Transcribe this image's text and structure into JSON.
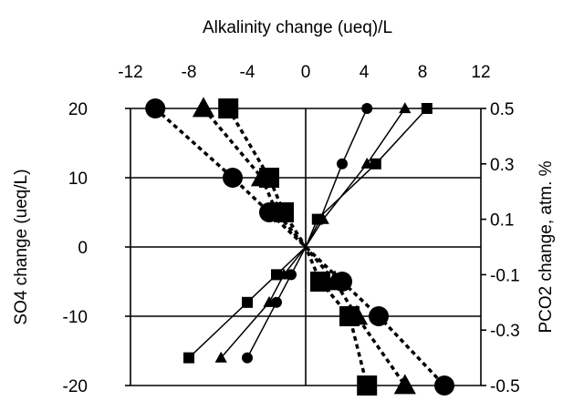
{
  "chart_data": {
    "type": "scatter",
    "title": "",
    "x_top_label": "Alkalinity change  (ueq)/L",
    "y_left_label": "SO4 change (ueq/L)",
    "y_right_label": "PCO2 change, atm. %",
    "x_ticks": [
      "-12",
      "-8",
      "-4",
      "0",
      "4",
      "8",
      "12"
    ],
    "x_tick_values": [
      -12,
      -8,
      -4,
      0,
      4,
      8,
      12
    ],
    "y_left_ticks": [
      "20",
      "10",
      "0",
      "-10",
      "-20"
    ],
    "y_left_tick_values": [
      20,
      10,
      0,
      -10,
      -20
    ],
    "y_right_ticks": [
      "0.5",
      "0.3",
      "0.1",
      "-0.1",
      "-0.3",
      "-0.5"
    ],
    "y_right_tick_values": [
      0.5,
      0.3,
      0.1,
      -0.1,
      -0.3,
      -0.5
    ],
    "xlim": [
      -12,
      12
    ],
    "ylim_left": [
      -20,
      20
    ],
    "ylim_right": [
      -0.5,
      0.5
    ],
    "grid": "horizontal",
    "colors": {
      "ink": "#000000",
      "background": "#ffffff"
    },
    "series": [
      {
        "marker": "circle",
        "size": "large",
        "line": "dashed",
        "axis": "left",
        "points": [
          [
            -10.3,
            20
          ],
          [
            -5,
            10
          ],
          [
            -2.5,
            5
          ],
          [
            0,
            0
          ],
          [
            2.5,
            -5
          ],
          [
            5,
            -10
          ],
          [
            9.5,
            -20
          ]
        ]
      },
      {
        "marker": "triangle",
        "size": "large",
        "line": "dashed",
        "axis": "left",
        "points": [
          [
            -7,
            20
          ],
          [
            -3,
            10
          ],
          [
            -2,
            5
          ],
          [
            0,
            0
          ],
          [
            2,
            -5
          ],
          [
            3.5,
            -10
          ],
          [
            6.8,
            -20
          ]
        ]
      },
      {
        "marker": "square",
        "size": "large",
        "line": "dashed",
        "axis": "left",
        "points": [
          [
            -5.3,
            20
          ],
          [
            -2.5,
            10
          ],
          [
            -1.5,
            5
          ],
          [
            0,
            0
          ],
          [
            1,
            -5
          ],
          [
            3,
            -10
          ],
          [
            4.2,
            -20
          ]
        ]
      },
      {
        "marker": "circle",
        "size": "small",
        "line": "solid",
        "axis": "left",
        "points": [
          [
            -4,
            -16
          ],
          [
            -2,
            -8
          ],
          [
            -1,
            -4
          ],
          [
            0,
            0
          ],
          [
            1,
            4
          ],
          [
            2.5,
            12
          ],
          [
            4.2,
            20
          ]
        ]
      },
      {
        "marker": "triangle",
        "size": "small",
        "line": "solid",
        "axis": "left",
        "points": [
          [
            -5.8,
            -16
          ],
          [
            -2.5,
            -8
          ],
          [
            -1.5,
            -4
          ],
          [
            0,
            0
          ],
          [
            1.2,
            4
          ],
          [
            4.2,
            12
          ],
          [
            6.8,
            20
          ]
        ]
      },
      {
        "marker": "square",
        "size": "small",
        "line": "solid",
        "axis": "left",
        "points": [
          [
            -8,
            -16
          ],
          [
            -4,
            -8
          ],
          [
            -2,
            -4
          ],
          [
            0,
            0
          ],
          [
            0.8,
            4
          ],
          [
            4.8,
            12
          ],
          [
            8.3,
            20
          ]
        ]
      }
    ]
  }
}
